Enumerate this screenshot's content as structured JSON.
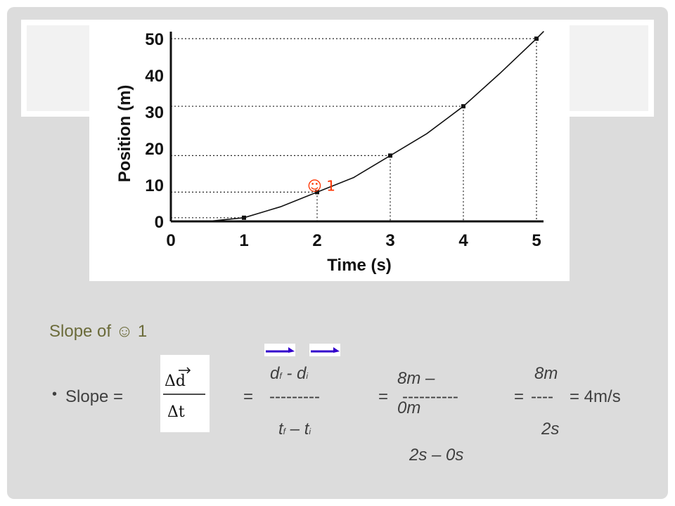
{
  "chart_data": {
    "type": "line",
    "xlabel": "Time (s)",
    "ylabel": "Position (m)",
    "xlim": [
      0,
      5
    ],
    "ylim": [
      0,
      50
    ],
    "x_ticks": [
      "0",
      "1",
      "2",
      "3",
      "4",
      "5"
    ],
    "y_ticks": [
      "0",
      "10",
      "20",
      "30",
      "40",
      "50"
    ],
    "grid": "dotted guide lines to marked points",
    "series": [
      {
        "x": [
          0.5,
          1,
          1.5,
          2,
          2.5,
          3,
          3.5,
          4,
          4.5,
          5,
          5.1
        ],
        "y": [
          0,
          1,
          4,
          8,
          12,
          18,
          24,
          31.5,
          40.5,
          50,
          52
        ]
      }
    ],
    "marked_points": [
      {
        "x": 1,
        "y": 1
      },
      {
        "x": 2,
        "y": 8
      },
      {
        "x": 3,
        "y": 18
      },
      {
        "x": 4,
        "y": 31.5
      },
      {
        "x": 5,
        "y": 50
      }
    ],
    "annotation": {
      "x": 2,
      "y": 8,
      "text": "☺ 1",
      "color": "#ff3300"
    }
  },
  "slide": {
    "slope_title": "Slope of ☺ 1",
    "bullet": "•",
    "slope_label": "Slope =",
    "formula": {
      "delta_d": "Δd",
      "delta_t": "Δt"
    },
    "eq1": "=",
    "df": "d",
    "df_sub": "f",
    "minus1": " - ",
    "di": "d",
    "di_sub": "i",
    "dash1": "---------",
    "tf": "t",
    "tf_sub": "f",
    "minus2": " – ",
    "ti": "t",
    "ti_sub": "i",
    "eq2": "=",
    "num2": "8m – 0m",
    "dash2": "----------",
    "den2": "2s – 0s",
    "eq3": "=",
    "num3": "8m",
    "dash3": "----",
    "den3": "2s",
    "eq4": "= 4m/s",
    "arrow_color": "#3300cc"
  }
}
